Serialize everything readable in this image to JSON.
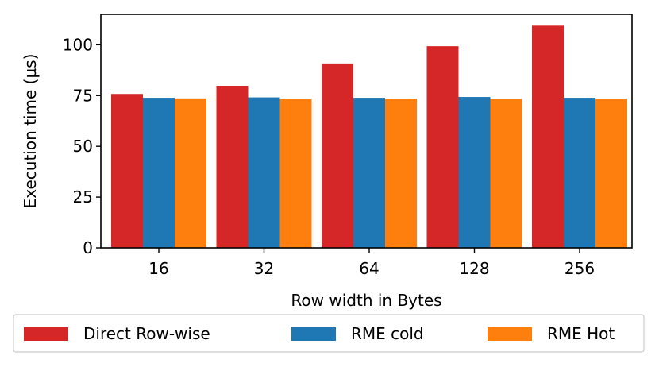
{
  "chart_data": {
    "type": "bar",
    "title": "",
    "xlabel": "Row width in Bytes",
    "ylabel": "Execution time (µs)",
    "categories": [
      "16",
      "32",
      "64",
      "128",
      "256"
    ],
    "ylim": [
      0,
      115
    ],
    "yticks": [
      0,
      25,
      50,
      75,
      100
    ],
    "grid": false,
    "legend_placement": "bottom, below axes, single row with frame",
    "series": [
      {
        "name": "Direct Row-wise",
        "color": "#d62728",
        "values": [
          75.8,
          79.8,
          90.8,
          99.3,
          109.4
        ]
      },
      {
        "name": "RME cold",
        "color": "#1f77b4",
        "values": [
          73.9,
          74.1,
          73.9,
          74.3,
          73.9
        ]
      },
      {
        "name": "RME Hot",
        "color": "#ff7f0e",
        "values": [
          73.6,
          73.5,
          73.5,
          73.4,
          73.5
        ]
      }
    ]
  }
}
